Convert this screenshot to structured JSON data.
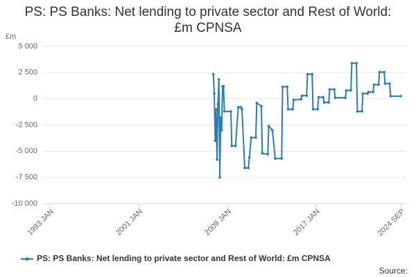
{
  "chart_data": {
    "type": "line",
    "title": "PS: PS Banks: Net lending to private sector and Rest of World: £m CPNSA",
    "y_label": "£m",
    "source": "Source:",
    "x": [
      "2007 OCT",
      "2007 NOV",
      "2007 DEC",
      "2008 JAN",
      "2008 FEB",
      "2008 MAR",
      "2008 APR",
      "2008 MAY",
      "2008 JUN",
      "2008 JUL",
      "2008 AUG",
      "2008 SEP",
      "2008 OCT",
      "2009 MAY",
      "2009 JUN",
      "2009 OCT",
      "2010 JAN",
      "2010 APR",
      "2010 MAY",
      "2010 AUG",
      "2010 DEC",
      "2011 JAN",
      "2011 MAR",
      "2011 AUG",
      "2011 SEP",
      "2012 FEB",
      "2012 MAR",
      "2012 SEP",
      "2012 OCT",
      "2013 FEB",
      "2013 MAY",
      "2013 DEC",
      "2014 JAN",
      "2014 JUN",
      "2014 JUL",
      "2014 DEC",
      "2015 JAN",
      "2015 SEP",
      "2015 OCT",
      "2016 MAR",
      "2016 APR",
      "2016 SEP",
      "2016 OCT",
      "2017 MAR",
      "2017 APR",
      "2017 SEP",
      "2017 OCT",
      "2018 MAR",
      "2018 APR",
      "2018 SEP",
      "2018 OCT",
      "2019 SEP",
      "2019 OCT",
      "2020 MAR",
      "2020 APR",
      "2020 SEP",
      "2020 OCT",
      "2021 MAR",
      "2021 APR",
      "2021 SEP",
      "2021 OCT",
      "2022 MAR",
      "2022 APR",
      "2022 SEP",
      "2022 OCT",
      "2023 MAR",
      "2023 APR",
      "2023 SEP",
      "2023 OCT",
      "2024 SEP"
    ],
    "series": [
      {
        "name": "PS: PS Banks: Net lending to private sector and Rest of World: £m CPNSA",
        "color": "#2b7bb5",
        "values": [
          2350,
          500,
          -4000,
          -1000,
          -5800,
          -500,
          1850,
          -7500,
          -1800,
          -3000,
          1200,
          1200,
          -1200,
          -1200,
          -4500,
          -4500,
          -800,
          -800,
          -1000,
          -6600,
          -6600,
          -5600,
          -3700,
          -3700,
          -400,
          -700,
          -5200,
          -5300,
          -2600,
          -3000,
          -5700,
          -5700,
          1150,
          1150,
          -1000,
          -1000,
          -100,
          -50,
          300,
          300,
          2350,
          2350,
          -1000,
          -1000,
          150,
          150,
          -350,
          -350,
          900,
          900,
          100,
          100,
          800,
          800,
          3400,
          3400,
          -1200,
          -1200,
          500,
          500,
          650,
          650,
          1350,
          1350,
          2550,
          2550,
          1450,
          1450,
          250,
          250
        ]
      }
    ],
    "xlim": [
      "1993 JAN",
      "2024 SEP"
    ],
    "xticks": [
      "1993 JAN",
      "2001 JAN",
      "2009 JAN",
      "2017 JAN",
      "2024 SEP"
    ],
    "ylim": [
      -10000,
      5000
    ],
    "yticks": [
      {
        "value": -10000,
        "label": "-10 000"
      },
      {
        "value": -7500,
        "label": "-7 500"
      },
      {
        "value": -5000,
        "label": "-5 000"
      },
      {
        "value": -2500,
        "label": "-2 500"
      },
      0,
      {
        "value": 2500,
        "label": "2 500"
      },
      {
        "value": 5000,
        "label": "5 000"
      }
    ],
    "grid": true
  }
}
